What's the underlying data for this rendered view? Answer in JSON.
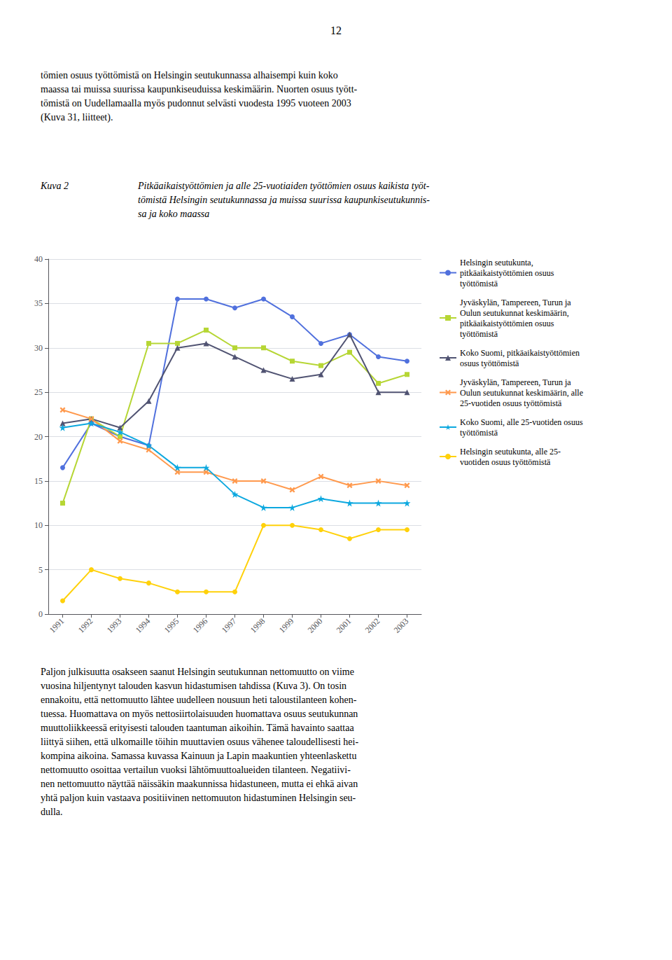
{
  "chart_data": {
    "type": "line",
    "title": "Kuva 2",
    "subtitle": "Pitkäaikaistyöttömien ja alle 25-vuotiaiden työttömien osuus kaikista työt-\ntömistä Helsingin seutukunnassa ja muissa suurissa kaupunkiseutukunnis-\nsa ja koko maassa",
    "annotations": [
      "12",
      "tömien osuus työttömistä on Helsingin seutukunnassa alhaisempi kuin koko\nmaassa tai muissa suurissa kaupunkiseuduissa keskimäärin. Nuorten osuus tyött-\ntömistä on Uudellamaalla myös pudonnut selvästi vuodesta 1995 vuoteen 2003\n(Kuva 31, liitteet).",
      "Paljon julkisuutta osakseen saanut Helsingin seutukunnan nettomuutto on viime\nvuosina hiljentynyt talouden kasvun hidastumisen tahdissa (Kuva 3). On tosin\nennakoitu, että nettomuutto lähtee uudelleen nousuun heti taloustilanteen kohen-\ntuessa. Huomattava on myös nettosiirtolaisuuden huomattava osuus seutukunnan\nmuuttoliikkeessä erityisesti talouden taantuman aikoihin. Tämä havainto saattaa\nliittyä siihen, että ulkomaille töihin muuttavien osuus vähenee taloudellisesti hei-\nkompina aikoina. Samassa kuvassa Kainuun ja Lapin maakuntien yhteenlaskettu\nnettomuutto osoittaa vertailun vuoksi lähtömuuttoalueiden tilanteen. Negatiivi-\nnen nettomuutto näyttää näissäkin maakunnissa hidastuneen, mutta ei ehkä aivan\nyhtä paljon kuin vastaava positiivinen nettomuuton hidastuminen Helsingin seu-\ndulla."
    ],
    "x": [
      1991,
      1992,
      1993,
      1994,
      1995,
      1996,
      1997,
      1998,
      1999,
      2000,
      2001,
      2002,
      2003
    ],
    "xlim": [
      1990.5,
      2003.5
    ],
    "xticks": [
      1991,
      1992,
      1993,
      1994,
      1995,
      1996,
      1997,
      1998,
      1999,
      2000,
      2001,
      2002,
      2003
    ],
    "ylim": [
      0,
      40
    ],
    "yticks": [
      0,
      5,
      10,
      15,
      20,
      25,
      30,
      35,
      40
    ],
    "grid": true,
    "legend": "right",
    "series": [
      {
        "name": "Helsingin seutukunta,\npitkäaikaistyöttömien osuus\ntyöttömistä",
        "marker": "circle",
        "values": [
          16.5,
          21.5,
          20.0,
          19.0,
          35.5,
          35.5,
          34.5,
          35.5,
          33.5,
          30.5,
          31.5,
          29.0,
          28.5
        ]
      },
      {
        "name": "Jyväskylän, Tampereen, Turun ja\nOulun seutukunnat keskimäärin,\npitkäaikaistyöttömien osuus\ntyöttömistä",
        "marker": "square",
        "values": [
          12.5,
          22.0,
          20.0,
          30.5,
          30.5,
          32.0,
          30.0,
          30.0,
          28.5,
          28.0,
          29.5,
          26.0,
          27.0
        ]
      },
      {
        "name": "Koko Suomi, pitkäaikaistyöttömien\nosuus työttömistä",
        "marker": "triangle",
        "values": [
          21.5,
          22.0,
          21.0,
          24.0,
          30.0,
          30.5,
          29.0,
          27.5,
          26.5,
          27.0,
          31.5,
          25.0,
          25.0
        ]
      },
      {
        "name": "Jyväskylän, Tampereen, Turun ja\nOulun seutukunnat keskimäärin, alle\n25-vuotiden osuus työttömistä",
        "marker": "x",
        "values": [
          23.0,
          22.0,
          19.5,
          18.5,
          16.0,
          16.0,
          15.0,
          15.0,
          14.0,
          15.5,
          14.5,
          15.0,
          14.5
        ]
      },
      {
        "name": "Koko Suomi, alle 25-vuotiden osuus\ntyöttömistä",
        "marker": "star",
        "values": [
          21.0,
          21.5,
          20.5,
          19.0,
          16.5,
          16.5,
          13.5,
          12.0,
          12.0,
          13.0,
          12.5,
          12.5,
          12.5
        ]
      },
      {
        "name": "Helsingin seutukunta, alle 25-\nvuotiden osuus työttömistä",
        "marker": "circle",
        "values": [
          1.5,
          5.0,
          4.0,
          3.5,
          2.5,
          2.5,
          2.5,
          10.0,
          10.0,
          9.5,
          8.5,
          9.5,
          9.5
        ]
      }
    ]
  }
}
